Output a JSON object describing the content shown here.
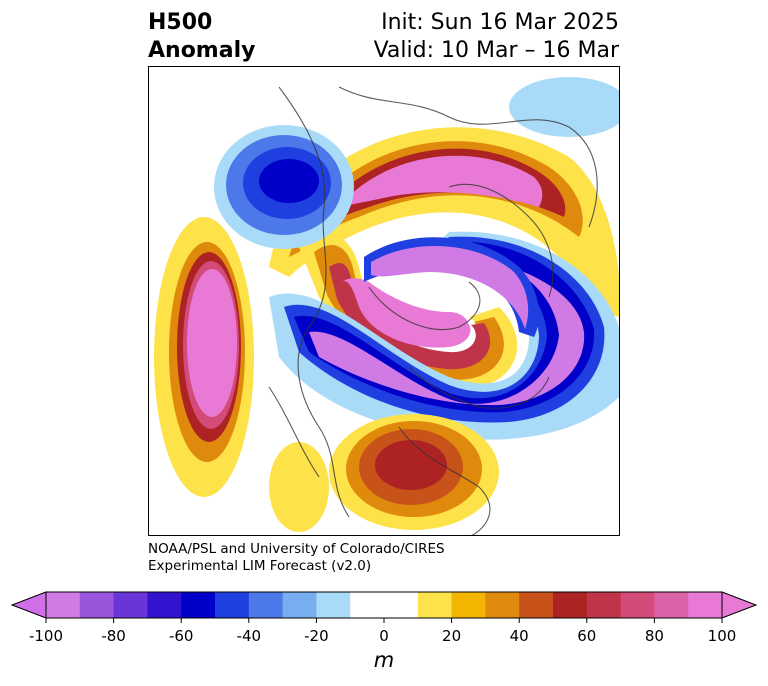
{
  "title": {
    "left_line1": "H500",
    "left_line2": "Anomaly",
    "init": "Init: Sun 16 Mar 2025",
    "valid": "Valid: 10 Mar – 16 Mar"
  },
  "credit": {
    "line1": "NOAA/PSL and University of Colorado/CIRES",
    "line2": "Experimental LIM Forecast (v2.0)"
  },
  "colorbar": {
    "unit": "m",
    "ticks": [
      "-100",
      "-80",
      "-60",
      "-40",
      "-20",
      "0",
      "20",
      "40",
      "60",
      "80",
      "100"
    ],
    "colors": [
      "#d07ae6",
      "#9a55dd",
      "#6a35d8",
      "#3313cf",
      "#0000c8",
      "#1f3fe0",
      "#4d78ea",
      "#78aef0",
      "#a9dbf8",
      "#ffffff",
      "#ffffff",
      "#fde24a",
      "#f2b500",
      "#df8a0c",
      "#c8531a",
      "#ad2222",
      "#c0344a",
      "#d34b78",
      "#dc62a8",
      "#e87ad6"
    ],
    "min_color": "#d070e8",
    "max_color": "#e87ad6"
  }
}
